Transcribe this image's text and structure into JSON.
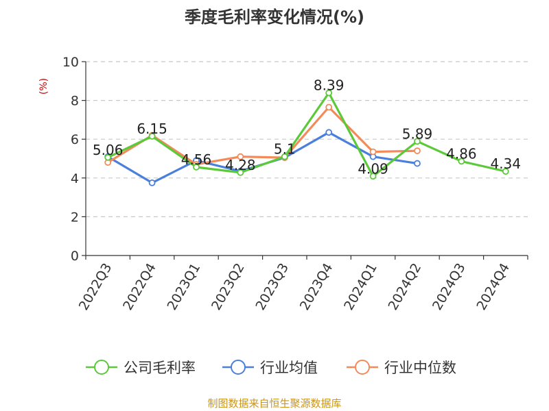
{
  "chart_data": {
    "type": "line",
    "title": "季度毛利率变化情况(%)",
    "ylabel": "(%)",
    "xlabel": "",
    "ylim": [
      0,
      10
    ],
    "yticks": [
      0,
      2,
      4,
      6,
      8,
      10
    ],
    "grid": true,
    "legend_position": "bottom",
    "categories": [
      "2022Q3",
      "2022Q4",
      "2023Q1",
      "2023Q2",
      "2023Q3",
      "2023Q4",
      "2024Q1",
      "2024Q2",
      "2024Q3",
      "2024Q4"
    ],
    "series": [
      {
        "name": "公司毛利率",
        "color": "#5cc93a",
        "values": [
          5.06,
          6.15,
          4.56,
          4.28,
          5.1,
          8.39,
          4.09,
          5.89,
          4.86,
          4.34
        ],
        "labels": [
          "5.06",
          "6.15",
          "4.56",
          "4.28",
          "5.1",
          "8.39",
          "4.09",
          "5.89",
          "4.86",
          "4.34"
        ]
      },
      {
        "name": "行业均值",
        "color": "#4a7fdc",
        "values": [
          5.1,
          3.75,
          4.9,
          4.35,
          5.05,
          6.35,
          5.1,
          4.75,
          null,
          null
        ]
      },
      {
        "name": "行业中位数",
        "color": "#f28a5a",
        "values": [
          4.8,
          6.2,
          4.7,
          5.1,
          5.05,
          7.65,
          5.35,
          5.4,
          null,
          null
        ]
      }
    ]
  },
  "source": "制图数据来自恒生聚源数据库"
}
